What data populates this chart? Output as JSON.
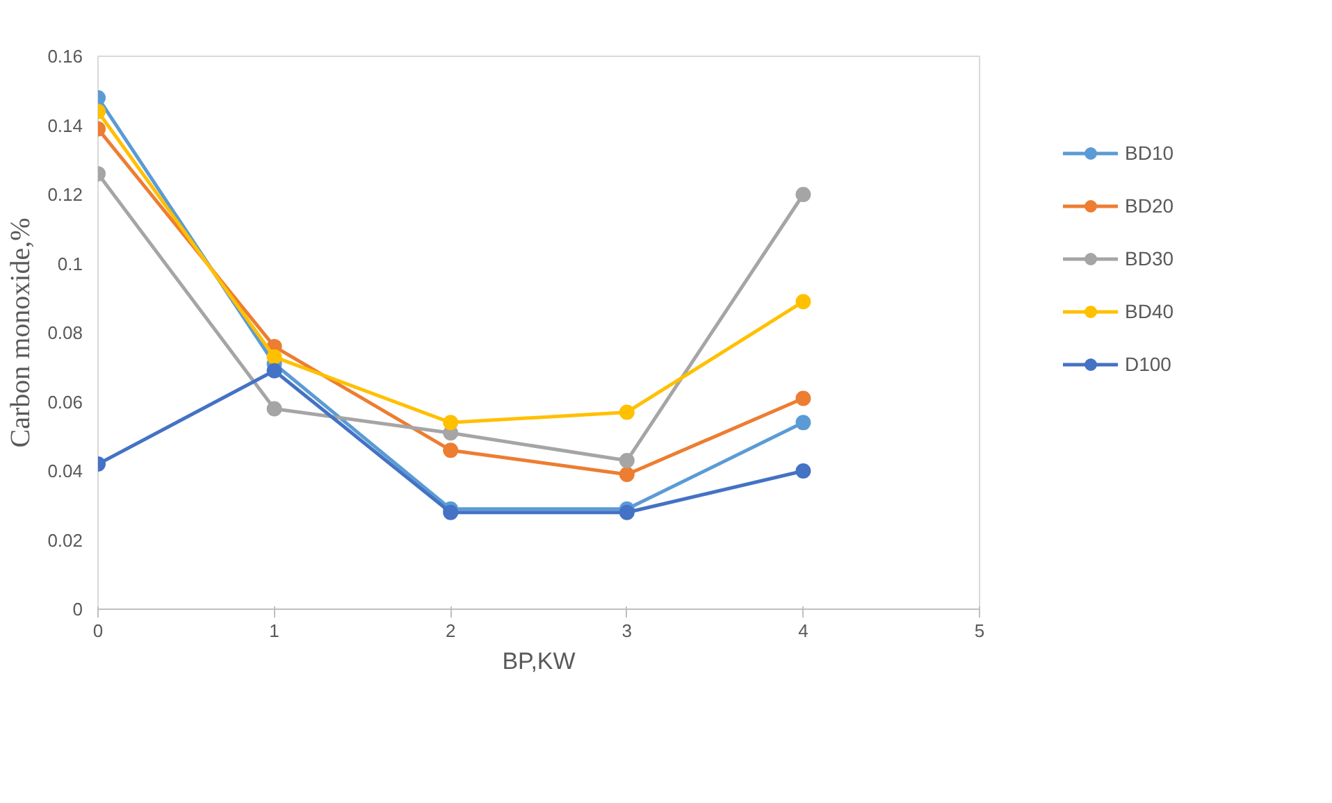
{
  "chart_data": {
    "type": "line",
    "xlabel": "BP,KW",
    "ylabel": "Carbon monoxide,%",
    "x": [
      0,
      1,
      2,
      3,
      4
    ],
    "xlim": [
      0,
      5
    ],
    "xticks": [
      0,
      1,
      2,
      3,
      4,
      5
    ],
    "ylim": [
      0,
      0.16
    ],
    "yticks": [
      0,
      0.02,
      0.04,
      0.06,
      0.08,
      0.1,
      0.12,
      0.14,
      0.16
    ],
    "grid": false,
    "legend": "right",
    "marker": "circle",
    "line_style": "solid",
    "series": [
      {
        "name": "BD10",
        "color": "#5b9bd5",
        "values": [
          0.148,
          0.071,
          0.029,
          0.029,
          0.054
        ]
      },
      {
        "name": "BD20",
        "color": "#ed7d31",
        "values": [
          0.139,
          0.076,
          0.046,
          0.039,
          0.061
        ]
      },
      {
        "name": "BD30",
        "color": "#a5a5a5",
        "values": [
          0.126,
          0.058,
          0.051,
          0.043,
          0.12
        ]
      },
      {
        "name": "BD40",
        "color": "#ffc000",
        "values": [
          0.144,
          0.073,
          0.054,
          0.057,
          0.089
        ]
      },
      {
        "name": "D100",
        "color": "#4472c4",
        "values": [
          0.042,
          0.069,
          0.028,
          0.028,
          0.04
        ]
      }
    ]
  }
}
